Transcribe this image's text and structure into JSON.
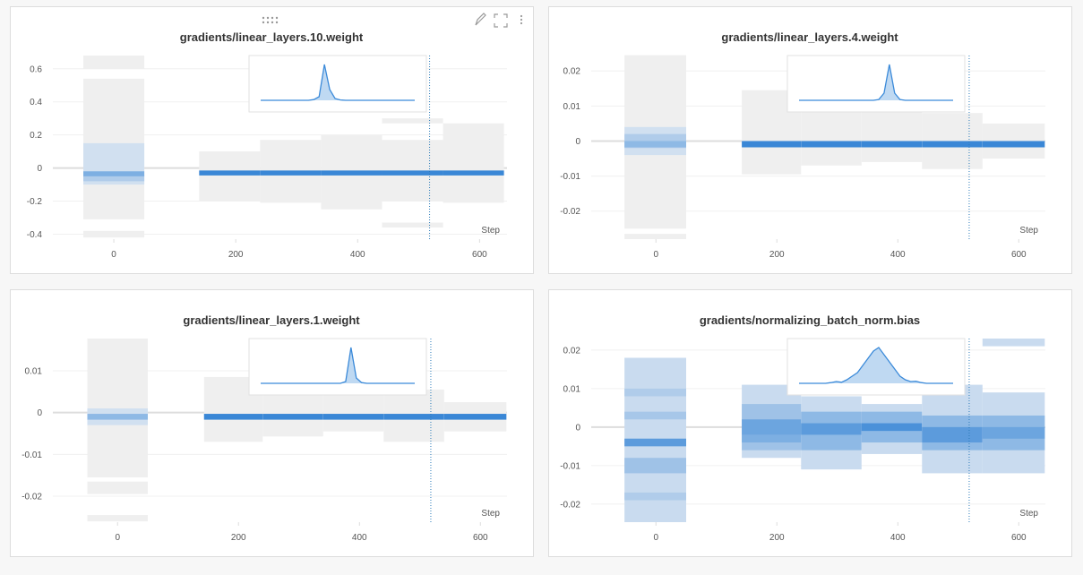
{
  "chart_data": [
    {
      "type": "heatmap",
      "title": "gradients/linear_layers.10.weight",
      "x_label": "Step",
      "xlim": [
        -100,
        645
      ],
      "ylim": [
        -0.43,
        0.68
      ],
      "xticks": [
        0,
        200,
        400,
        600
      ],
      "yticks": [
        0.6,
        0.4,
        0.2,
        0,
        -0.2,
        -0.4
      ],
      "cursor_step": 518,
      "columns": [
        {
          "x": [
            -50,
            50
          ],
          "bins": [
            [
              0.6,
              0.68,
              0
            ],
            [
              -0.31,
              0.54,
              0
            ],
            [
              -0.42,
              -0.38,
              0
            ],
            [
              -0.1,
              0.15,
              0.1
            ],
            [
              -0.08,
              -0.04,
              0.3
            ],
            [
              -0.05,
              -0.02,
              0.6
            ]
          ]
        },
        {
          "x": [
            140,
            240
          ],
          "bins": [
            [
              -0.2,
              0.1,
              0
            ],
            [
              -0.045,
              -0.015,
              1
            ]
          ]
        },
        {
          "x": [
            240,
            340
          ],
          "bins": [
            [
              -0.21,
              0.17,
              0
            ],
            [
              -0.045,
              -0.015,
              1
            ]
          ]
        },
        {
          "x": [
            340,
            440
          ],
          "bins": [
            [
              -0.25,
              0.2,
              0
            ],
            [
              -0.045,
              -0.015,
              1
            ]
          ]
        },
        {
          "x": [
            440,
            540
          ],
          "bins": [
            [
              0.27,
              0.3,
              0
            ],
            [
              -0.2,
              0.17,
              0
            ],
            [
              -0.36,
              -0.33,
              0
            ],
            [
              -0.045,
              -0.015,
              1
            ]
          ]
        },
        {
          "x": [
            540,
            640
          ],
          "bins": [
            [
              -0.21,
              0.27,
              0
            ],
            [
              -0.045,
              -0.015,
              1
            ]
          ]
        }
      ],
      "inset": [
        0,
        0,
        0,
        0,
        0,
        0,
        0,
        0,
        0,
        0,
        0.02,
        0.1,
        1,
        0.3,
        0.05,
        0.01,
        0,
        0,
        0,
        0,
        0,
        0,
        0,
        0,
        0,
        0,
        0,
        0,
        0,
        0
      ]
    },
    {
      "type": "heatmap",
      "title": "gradients/linear_layers.4.weight",
      "x_label": "Step",
      "xlim": [
        -107,
        644
      ],
      "ylim": [
        -0.028,
        0.0244
      ],
      "xticks": [
        0,
        200,
        400,
        600
      ],
      "yticks": [
        0.02,
        0.01,
        0,
        -0.01,
        -0.02
      ],
      "cursor_step": 518,
      "columns": [
        {
          "x": [
            -52,
            50
          ],
          "bins": [
            [
              -0.025,
              0.0245,
              0
            ],
            [
              -0.028,
              -0.0265,
              0
            ],
            [
              -0.004,
              0.004,
              0.1
            ],
            [
              -0.002,
              0.002,
              0.3
            ],
            [
              -0.0018,
              0,
              0.5
            ]
          ]
        },
        {
          "x": [
            142,
            240
          ],
          "bins": [
            [
              -0.0095,
              0.0145,
              0
            ],
            [
              -0.0018,
              0,
              1
            ]
          ]
        },
        {
          "x": [
            240,
            340
          ],
          "bins": [
            [
              -0.007,
              0.015,
              0
            ],
            [
              -0.0018,
              0,
              1
            ]
          ]
        },
        {
          "x": [
            340,
            440
          ],
          "bins": [
            [
              -0.006,
              0.0095,
              0
            ],
            [
              -0.0018,
              0,
              1
            ]
          ]
        },
        {
          "x": [
            440,
            540
          ],
          "bins": [
            [
              -0.008,
              0.008,
              0
            ],
            [
              -0.0018,
              0,
              1
            ]
          ]
        },
        {
          "x": [
            540,
            643
          ],
          "bins": [
            [
              -0.005,
              0.005,
              0
            ],
            [
              -0.0018,
              0,
              1
            ]
          ]
        }
      ],
      "inset": [
        0,
        0,
        0,
        0,
        0,
        0,
        0,
        0,
        0,
        0,
        0,
        0,
        0,
        0,
        0,
        0.02,
        0.2,
        1,
        0.2,
        0.02,
        0,
        0,
        0,
        0,
        0,
        0,
        0,
        0,
        0,
        0
      ]
    },
    {
      "type": "heatmap",
      "title": "gradients/linear_layers.1.weight",
      "x_label": "Step",
      "xlim": [
        -107,
        644
      ],
      "ylim": [
        -0.0262,
        0.0177
      ],
      "xticks": [
        0,
        200,
        400,
        600
      ],
      "yticks": [
        0.01,
        0,
        -0.01,
        -0.02
      ],
      "cursor_step": 518,
      "columns": [
        {
          "x": [
            -50,
            50
          ],
          "bins": [
            [
              -0.0155,
              0.0177,
              0
            ],
            [
              -0.0195,
              -0.0165,
              0
            ],
            [
              -0.026,
              -0.0245,
              0
            ],
            [
              -0.003,
              0.001,
              0.1
            ],
            [
              -0.0017,
              -0.0003,
              0.5
            ]
          ]
        },
        {
          "x": [
            143,
            240
          ],
          "bins": [
            [
              -0.007,
              0.0085,
              0
            ],
            [
              -0.0017,
              -0.0003,
              1
            ]
          ]
        },
        {
          "x": [
            240,
            340
          ],
          "bins": [
            [
              -0.0057,
              0.0048,
              0
            ],
            [
              -0.0017,
              -0.0003,
              1
            ]
          ]
        },
        {
          "x": [
            340,
            440
          ],
          "bins": [
            [
              -0.0045,
              0.0045,
              0
            ],
            [
              -0.0017,
              -0.0003,
              1
            ]
          ]
        },
        {
          "x": [
            440,
            540
          ],
          "bins": [
            [
              -0.007,
              0.0055,
              0
            ],
            [
              -0.0017,
              -0.0003,
              1
            ]
          ]
        },
        {
          "x": [
            540,
            643
          ],
          "bins": [
            [
              -0.0045,
              0.0025,
              0
            ],
            [
              -0.0017,
              -0.0003,
              1
            ]
          ]
        }
      ],
      "inset": [
        0,
        0,
        0,
        0,
        0,
        0,
        0,
        0,
        0,
        0,
        0,
        0,
        0,
        0,
        0,
        0,
        0.05,
        1,
        0.15,
        0.02,
        0,
        0,
        0,
        0,
        0,
        0,
        0,
        0,
        0,
        0
      ]
    },
    {
      "type": "heatmap",
      "title": "gradients/normalizing_batch_norm.bias",
      "x_label": "Step",
      "xlim": [
        -107,
        644
      ],
      "ylim": [
        -0.0247,
        0.023
      ],
      "xticks": [
        0,
        200,
        400,
        600
      ],
      "yticks": [
        0.02,
        0.01,
        0,
        -0.01,
        -0.02
      ],
      "cursor_step": 518,
      "columns": [
        {
          "x": [
            -52,
            50
          ],
          "bins": [
            [
              -0.0247,
              0.018,
              0.15
            ],
            [
              0.008,
              0.01,
              0.3
            ],
            [
              0.002,
              0.004,
              0.35
            ],
            [
              -0.005,
              -0.003,
              0.8
            ],
            [
              -0.012,
              -0.008,
              0.4
            ],
            [
              -0.019,
              -0.017,
              0.3
            ]
          ]
        },
        {
          "x": [
            142,
            240
          ],
          "bins": [
            [
              -0.008,
              0.011,
              0.15
            ],
            [
              -0.006,
              0.006,
              0.4
            ],
            [
              -0.002,
              0.002,
              0.7
            ],
            [
              -0.004,
              -0.002,
              0.6
            ]
          ]
        },
        {
          "x": [
            240,
            340
          ],
          "bins": [
            [
              -0.011,
              0.008,
              0.15
            ],
            [
              -0.006,
              0.004,
              0.5
            ],
            [
              -0.002,
              0.001,
              0.8
            ]
          ]
        },
        {
          "x": [
            340,
            440
          ],
          "bins": [
            [
              -0.007,
              0.006,
              0.15
            ],
            [
              -0.004,
              0.004,
              0.5
            ],
            [
              -0.001,
              0.001,
              0.9
            ]
          ]
        },
        {
          "x": [
            440,
            540
          ],
          "bins": [
            [
              -0.012,
              0.011,
              0.15
            ],
            [
              -0.006,
              0.003,
              0.5
            ],
            [
              -0.004,
              0,
              0.8
            ]
          ]
        },
        {
          "x": [
            540,
            643
          ],
          "bins": [
            [
              -0.012,
              0.009,
              0.15
            ],
            [
              0.021,
              0.023,
              0.15
            ],
            [
              -0.006,
              0.003,
              0.5
            ],
            [
              -0.003,
              0,
              0.7
            ]
          ]
        }
      ],
      "inset": [
        0,
        0,
        0,
        0,
        0,
        0,
        0.02,
        0.05,
        0.03,
        0.1,
        0.2,
        0.3,
        0.5,
        0.7,
        0.9,
        1,
        0.8,
        0.6,
        0.4,
        0.2,
        0.1,
        0.05,
        0.06,
        0.02,
        0,
        0,
        0,
        0,
        0,
        0
      ]
    }
  ]
}
